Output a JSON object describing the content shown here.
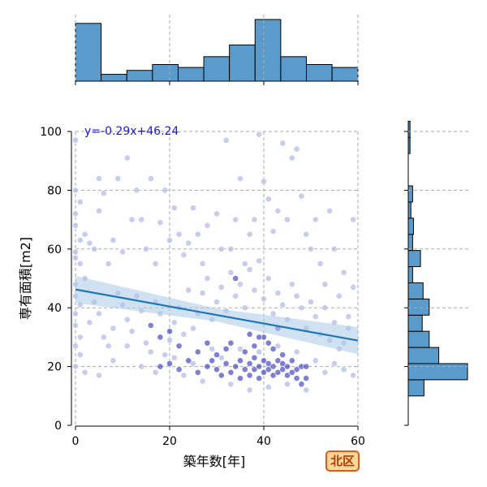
{
  "chart_data": {
    "type": "scatter",
    "xlabel": "築年数[年]",
    "ylabel": "専有面積[m2]",
    "xlim": [
      0,
      60
    ],
    "ylim": [
      0,
      100
    ],
    "x_ticks": [
      "0",
      "20",
      "40",
      "60"
    ],
    "y_ticks": [
      "0",
      "20",
      "40",
      "60",
      "80",
      "100"
    ],
    "grid": true,
    "regression": {
      "label": "y=-0.29x+46.24",
      "slope": -0.29,
      "intercept": 46.24
    },
    "badge": "北区",
    "colors": {
      "point": "#2b2bb5",
      "point_light": "#b8bbe6",
      "regression_line": "#1f77b4",
      "band": "#aacbe8",
      "histogram": "#5b9bcb"
    },
    "x_histogram": {
      "bin_edges": [
        0,
        5.45,
        10.9,
        16.35,
        21.8,
        27.25,
        32.7,
        38.15,
        43.6,
        49.05,
        54.5,
        60
      ],
      "counts": [
        59,
        7,
        11,
        17,
        14,
        25,
        37,
        63,
        25,
        17,
        14
      ]
    },
    "y_histogram": {
      "bin_edges": [
        10,
        15.5,
        21,
        26.5,
        32,
        37.5,
        43,
        48.5,
        54,
        59.5,
        65,
        70.5,
        76,
        81.5,
        87,
        92.5,
        98,
        103.5
      ],
      "counts": [
        18,
        68,
        35,
        24,
        16,
        24,
        17,
        5,
        14,
        5,
        6,
        3,
        5,
        0,
        0,
        2,
        2
      ]
    },
    "points": {
      "dense": [
        [
          18,
          20
        ],
        [
          20,
          21
        ],
        [
          22,
          19
        ],
        [
          24,
          22
        ],
        [
          26,
          18
        ],
        [
          28,
          20
        ],
        [
          29,
          22
        ],
        [
          30,
          19
        ],
        [
          31,
          17
        ],
        [
          32,
          21
        ],
        [
          33,
          18
        ],
        [
          34,
          20
        ],
        [
          35,
          22
        ],
        [
          35,
          16
        ],
        [
          36,
          19
        ],
        [
          37,
          21
        ],
        [
          37,
          17
        ],
        [
          38,
          23
        ],
        [
          38,
          19
        ],
        [
          39,
          20
        ],
        [
          39,
          16
        ],
        [
          40,
          18
        ],
        [
          40,
          22
        ],
        [
          41,
          19
        ],
        [
          41,
          21
        ],
        [
          42,
          17
        ],
        [
          42,
          20
        ],
        [
          43,
          22
        ],
        [
          43,
          18
        ],
        [
          44,
          19
        ],
        [
          44,
          21
        ],
        [
          45,
          17
        ],
        [
          45,
          20
        ],
        [
          46,
          18
        ],
        [
          46,
          22
        ],
        [
          47,
          19
        ],
        [
          47,
          16
        ],
        [
          48,
          20
        ],
        [
          48,
          14
        ],
        [
          49,
          16
        ],
        [
          49,
          20
        ],
        [
          36,
          25
        ],
        [
          38,
          27
        ],
        [
          40,
          30
        ],
        [
          42,
          26
        ],
        [
          44,
          24
        ],
        [
          32,
          26
        ],
        [
          30,
          24
        ],
        [
          28,
          28
        ],
        [
          26,
          25
        ],
        [
          16,
          34
        ],
        [
          18,
          30
        ],
        [
          22,
          27
        ],
        [
          20,
          32
        ],
        [
          34,
          50
        ],
        [
          39,
          30
        ],
        [
          41,
          28
        ],
        [
          43,
          33
        ],
        [
          37,
          31
        ],
        [
          33,
          28
        ]
      ],
      "light": [
        [
          0,
          97
        ],
        [
          0,
          80
        ],
        [
          1,
          76
        ],
        [
          0,
          72
        ],
        [
          0,
          68
        ],
        [
          1,
          63
        ],
        [
          0,
          59
        ],
        [
          0,
          57
        ],
        [
          1,
          55
        ],
        [
          2,
          50
        ],
        [
          0,
          48
        ],
        [
          0,
          44
        ],
        [
          1,
          41
        ],
        [
          0,
          38
        ],
        [
          0,
          34
        ],
        [
          1,
          30
        ],
        [
          0,
          27
        ],
        [
          1,
          24
        ],
        [
          0,
          20
        ],
        [
          2,
          18
        ],
        [
          2,
          65
        ],
        [
          3,
          62
        ],
        [
          4,
          60
        ],
        [
          5,
          73
        ],
        [
          5,
          84
        ],
        [
          6,
          79
        ],
        [
          7,
          55
        ],
        [
          8,
          63
        ],
        [
          9,
          84
        ],
        [
          10,
          59
        ],
        [
          11,
          91
        ],
        [
          12,
          70
        ],
        [
          13,
          80
        ],
        [
          14,
          70
        ],
        [
          15,
          60
        ],
        [
          16,
          84
        ],
        [
          17,
          55
        ],
        [
          18,
          69
        ],
        [
          19,
          80
        ],
        [
          20,
          63
        ],
        [
          21,
          74
        ],
        [
          22,
          65
        ],
        [
          23,
          58
        ],
        [
          24,
          62
        ],
        [
          25,
          74
        ],
        [
          26,
          65
        ],
        [
          27,
          55
        ],
        [
          28,
          68
        ],
        [
          30,
          72
        ],
        [
          31,
          60
        ],
        [
          32,
          97
        ],
        [
          33,
          60
        ],
        [
          34,
          70
        ],
        [
          35,
          84
        ],
        [
          36,
          55
        ],
        [
          37,
          65
        ],
        [
          38,
          70
        ],
        [
          39,
          99
        ],
        [
          40,
          83
        ],
        [
          41,
          77
        ],
        [
          42,
          66
        ],
        [
          43,
          73
        ],
        [
          44,
          96
        ],
        [
          45,
          70
        ],
        [
          46,
          91
        ],
        [
          47,
          94
        ],
        [
          48,
          78
        ],
        [
          49,
          65
        ],
        [
          50,
          60
        ],
        [
          51,
          70
        ],
        [
          52,
          55
        ],
        [
          53,
          48
        ],
        [
          54,
          73
        ],
        [
          55,
          60
        ],
        [
          56,
          44
        ],
        [
          57,
          52
        ],
        [
          58,
          37
        ],
        [
          59,
          70
        ],
        [
          59,
          47
        ],
        [
          57,
          28
        ],
        [
          3,
          35
        ],
        [
          4,
          42
        ],
        [
          5,
          38
        ],
        [
          6,
          30
        ],
        [
          7,
          27
        ],
        [
          8,
          33
        ],
        [
          9,
          45
        ],
        [
          10,
          41
        ],
        [
          11,
          36
        ],
        [
          12,
          32
        ],
        [
          13,
          44
        ],
        [
          14,
          39
        ],
        [
          15,
          28
        ],
        [
          16,
          25
        ],
        [
          17,
          42
        ],
        [
          18,
          38
        ],
        [
          19,
          24
        ],
        [
          20,
          29
        ],
        [
          21,
          35
        ],
        [
          22,
          40
        ],
        [
          23,
          31
        ],
        [
          24,
          46
        ],
        [
          25,
          33
        ],
        [
          26,
          38
        ],
        [
          27,
          45
        ],
        [
          28,
          50
        ],
        [
          29,
          36
        ],
        [
          30,
          42
        ],
        [
          31,
          47
        ],
        [
          32,
          39
        ],
        [
          33,
          52
        ],
        [
          34,
          44
        ],
        [
          35,
          48
        ],
        [
          36,
          40
        ],
        [
          37,
          53
        ],
        [
          38,
          46
        ],
        [
          39,
          56
        ],
        [
          40,
          43
        ],
        [
          41,
          50
        ],
        [
          42,
          38
        ],
        [
          43,
          45
        ],
        [
          44,
          41
        ],
        [
          45,
          36
        ],
        [
          46,
          48
        ],
        [
          47,
          44
        ],
        [
          48,
          40
        ],
        [
          49,
          33
        ],
        [
          50,
          42
        ],
        [
          51,
          37
        ],
        [
          52,
          31
        ],
        [
          53,
          40
        ],
        [
          54,
          29
        ],
        [
          55,
          35
        ],
        [
          56,
          26
        ],
        [
          58,
          33
        ],
        [
          59,
          17
        ],
        [
          5,
          17
        ],
        [
          8,
          22
        ],
        [
          11,
          27
        ],
        [
          14,
          20
        ],
        [
          17,
          18
        ],
        [
          21,
          23
        ],
        [
          23,
          17
        ],
        [
          25,
          21
        ],
        [
          27,
          15
        ],
        [
          29,
          26
        ],
        [
          31,
          23
        ],
        [
          33,
          14
        ],
        [
          35,
          26
        ],
        [
          37,
          12
        ],
        [
          39,
          25
        ],
        [
          41,
          13
        ],
        [
          43,
          27
        ],
        [
          45,
          14
        ],
        [
          47,
          25
        ],
        [
          49,
          12
        ],
        [
          51,
          22
        ],
        [
          53,
          18
        ],
        [
          55,
          21
        ],
        [
          57,
          19
        ]
      ]
    }
  }
}
